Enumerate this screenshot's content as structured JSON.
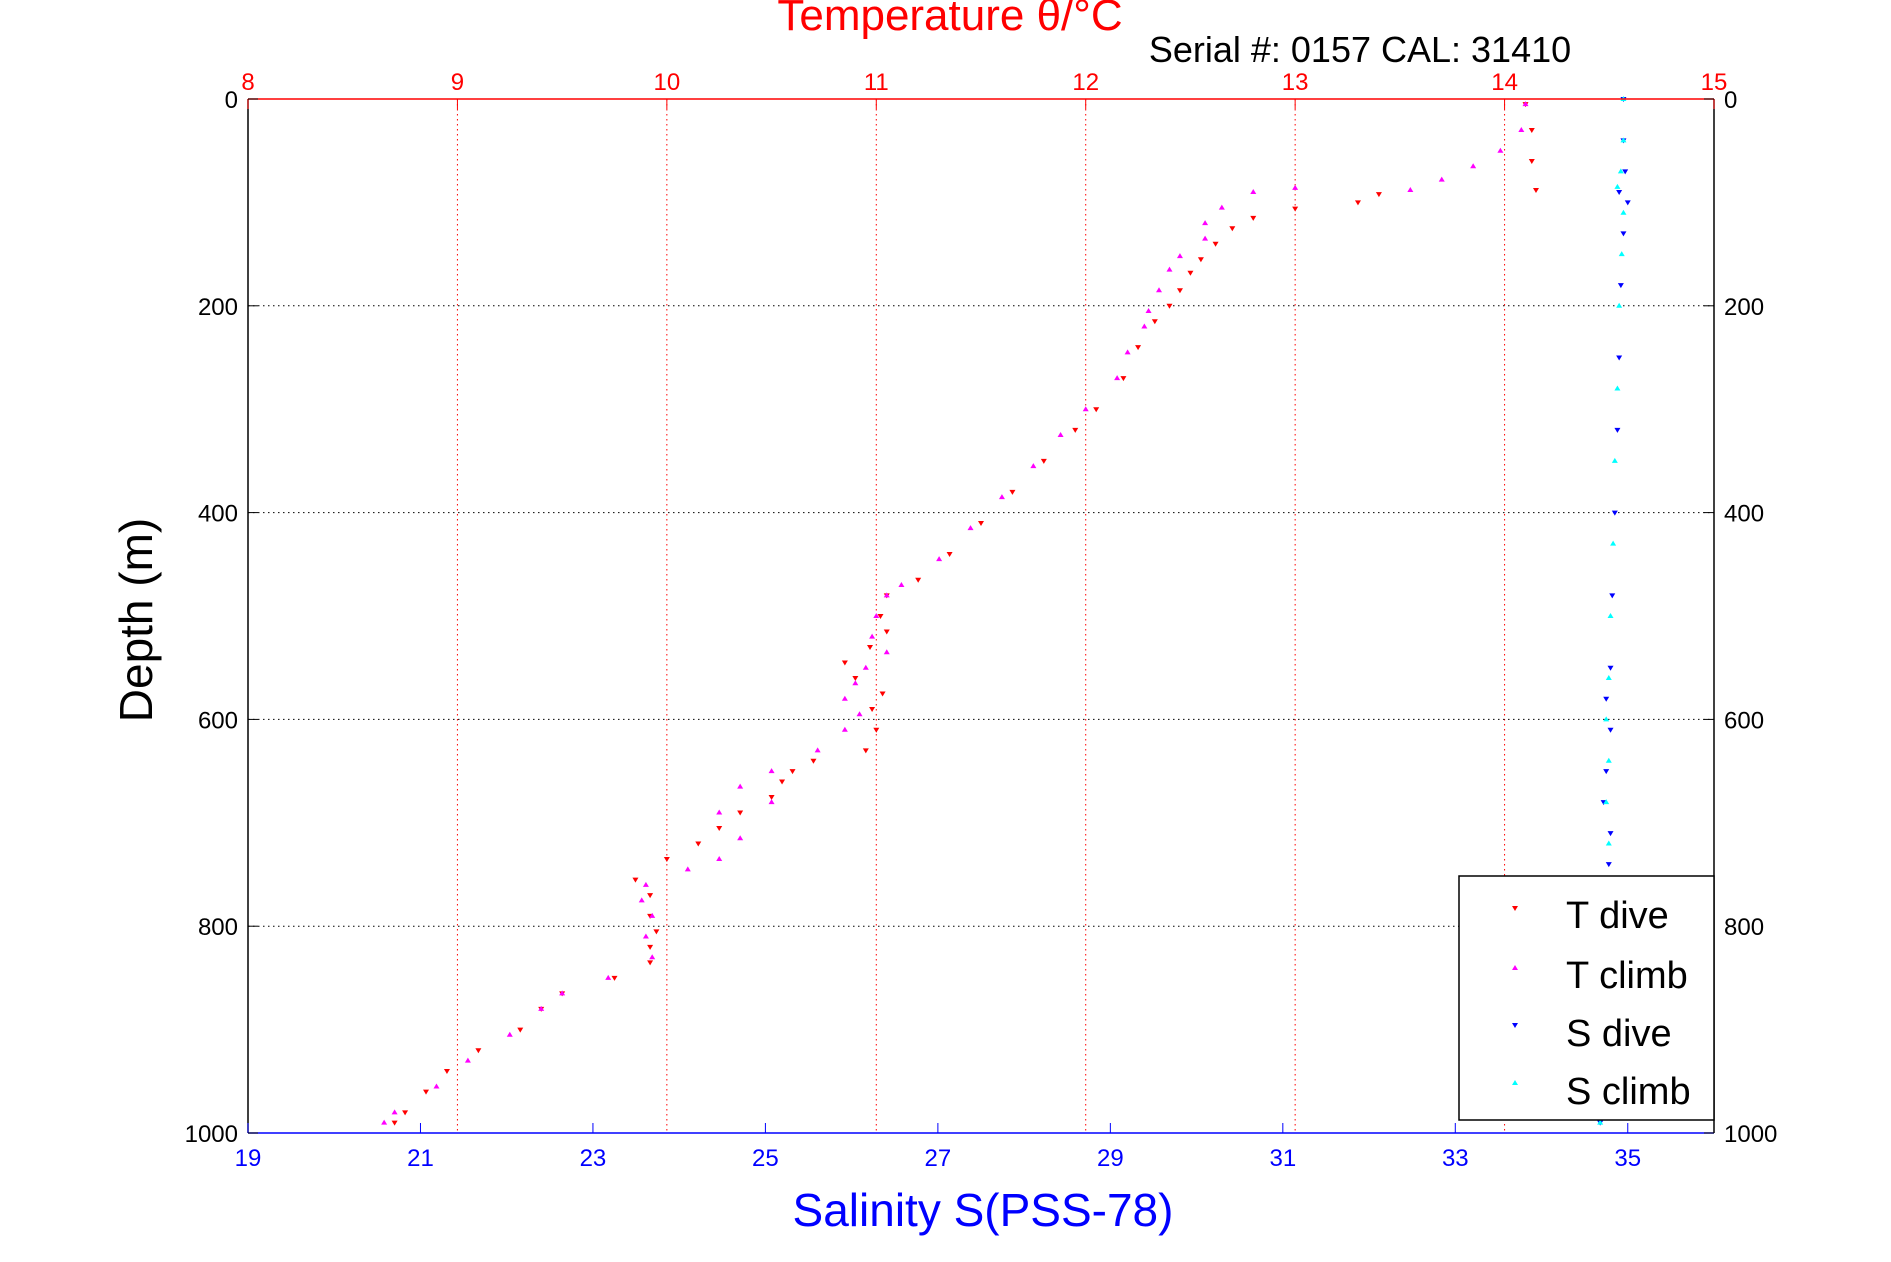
{
  "chart_data": {
    "type": "scatter",
    "title": "Temperature θ/°C",
    "subtitle": "Serial #: 0157  CAL: 31410",
    "ylabel": "Depth (m)",
    "xlabel": "Salinity S(PSS-78)",
    "y_axis": {
      "range": [
        0,
        1000
      ],
      "reversed": true,
      "ticks": [
        0,
        200,
        400,
        600,
        800,
        1000
      ]
    },
    "x_axis_temperature": {
      "range": [
        8,
        15
      ],
      "position": "top",
      "ticks": [
        8,
        9,
        10,
        11,
        12,
        13,
        14,
        15
      ]
    },
    "x_axis_salinity": {
      "range": [
        19,
        36
      ],
      "position": "bottom",
      "ticks": [
        19,
        21,
        23,
        25,
        27,
        29,
        31,
        33,
        35
      ]
    },
    "grid": true,
    "legend_position": "bottom-right",
    "colors": {
      "temperature_axis": "#ff0000",
      "salinity_axis": "#0000ff",
      "frame": "#000000"
    },
    "series": [
      {
        "name": "T dive",
        "axis": "temperature",
        "color": "#ff0000",
        "marker": "triangle-down",
        "points": [
          [
            14.1,
            5
          ],
          [
            14.13,
            30
          ],
          [
            14.13,
            60
          ],
          [
            14.15,
            88
          ],
          [
            13.4,
            92
          ],
          [
            13.3,
            100
          ],
          [
            13.0,
            106
          ],
          [
            12.8,
            115
          ],
          [
            12.7,
            125
          ],
          [
            12.62,
            140
          ],
          [
            12.55,
            155
          ],
          [
            12.5,
            168
          ],
          [
            12.45,
            185
          ],
          [
            12.4,
            200
          ],
          [
            12.33,
            215
          ],
          [
            12.25,
            240
          ],
          [
            12.18,
            270
          ],
          [
            12.05,
            300
          ],
          [
            11.95,
            320
          ],
          [
            11.8,
            350
          ],
          [
            11.65,
            380
          ],
          [
            11.5,
            410
          ],
          [
            11.35,
            440
          ],
          [
            11.2,
            465
          ],
          [
            11.05,
            480
          ],
          [
            11.02,
            500
          ],
          [
            11.05,
            515
          ],
          [
            10.97,
            530
          ],
          [
            10.85,
            545
          ],
          [
            10.9,
            560
          ],
          [
            11.03,
            575
          ],
          [
            10.98,
            590
          ],
          [
            11.0,
            610
          ],
          [
            10.95,
            630
          ],
          [
            10.7,
            640
          ],
          [
            10.6,
            650
          ],
          [
            10.55,
            660
          ],
          [
            10.5,
            675
          ],
          [
            10.35,
            690
          ],
          [
            10.25,
            705
          ],
          [
            10.15,
            720
          ],
          [
            10.0,
            735
          ],
          [
            9.85,
            755
          ],
          [
            9.92,
            770
          ],
          [
            9.92,
            790
          ],
          [
            9.95,
            805
          ],
          [
            9.92,
            820
          ],
          [
            9.92,
            835
          ],
          [
            9.75,
            850
          ],
          [
            9.5,
            865
          ],
          [
            9.4,
            880
          ],
          [
            9.3,
            900
          ],
          [
            9.1,
            920
          ],
          [
            8.95,
            940
          ],
          [
            8.85,
            960
          ],
          [
            8.75,
            980
          ],
          [
            8.7,
            990
          ]
        ]
      },
      {
        "name": "T climb",
        "axis": "temperature",
        "color": "#ff00ff",
        "marker": "triangle-up",
        "points": [
          [
            14.1,
            5
          ],
          [
            14.08,
            30
          ],
          [
            13.98,
            50
          ],
          [
            13.85,
            65
          ],
          [
            13.7,
            78
          ],
          [
            13.55,
            88
          ],
          [
            13.0,
            86
          ],
          [
            12.8,
            90
          ],
          [
            12.65,
            105
          ],
          [
            12.57,
            120
          ],
          [
            12.57,
            135
          ],
          [
            12.45,
            152
          ],
          [
            12.4,
            165
          ],
          [
            12.35,
            185
          ],
          [
            12.3,
            205
          ],
          [
            12.28,
            220
          ],
          [
            12.2,
            245
          ],
          [
            12.15,
            270
          ],
          [
            12.0,
            300
          ],
          [
            11.88,
            325
          ],
          [
            11.75,
            355
          ],
          [
            11.6,
            385
          ],
          [
            11.45,
            415
          ],
          [
            11.3,
            445
          ],
          [
            11.12,
            470
          ],
          [
            11.05,
            480
          ],
          [
            11.0,
            500
          ],
          [
            10.98,
            520
          ],
          [
            11.05,
            535
          ],
          [
            10.95,
            550
          ],
          [
            10.9,
            565
          ],
          [
            10.85,
            580
          ],
          [
            10.92,
            595
          ],
          [
            10.85,
            610
          ],
          [
            10.72,
            630
          ],
          [
            10.5,
            650
          ],
          [
            10.35,
            665
          ],
          [
            10.5,
            680
          ],
          [
            10.25,
            690
          ],
          [
            10.35,
            715
          ],
          [
            10.25,
            735
          ],
          [
            10.1,
            745
          ],
          [
            9.9,
            760
          ],
          [
            9.88,
            775
          ],
          [
            9.93,
            790
          ],
          [
            9.9,
            810
          ],
          [
            9.93,
            830
          ],
          [
            9.72,
            850
          ],
          [
            9.5,
            865
          ],
          [
            9.4,
            880
          ],
          [
            9.25,
            905
          ],
          [
            9.05,
            930
          ],
          [
            8.9,
            955
          ],
          [
            8.7,
            980
          ],
          [
            8.65,
            990
          ]
        ]
      },
      {
        "name": "S dive",
        "axis": "salinity",
        "color": "#0000ff",
        "marker": "triangle-down",
        "points": [
          [
            34.95,
            0
          ],
          [
            34.95,
            40
          ],
          [
            34.97,
            70
          ],
          [
            34.9,
            90
          ],
          [
            35.0,
            100
          ],
          [
            34.95,
            130
          ],
          [
            34.92,
            180
          ],
          [
            34.9,
            250
          ],
          [
            34.88,
            320
          ],
          [
            34.85,
            400
          ],
          [
            34.82,
            480
          ],
          [
            34.8,
            550
          ],
          [
            34.75,
            580
          ],
          [
            34.8,
            610
          ],
          [
            34.75,
            650
          ],
          [
            34.72,
            680
          ],
          [
            34.8,
            710
          ],
          [
            34.78,
            740
          ],
          [
            34.72,
            770
          ],
          [
            34.7,
            850
          ],
          [
            34.7,
            920
          ],
          [
            34.68,
            990
          ]
        ]
      },
      {
        "name": "S climb",
        "axis": "salinity",
        "color": "#00ffff",
        "marker": "triangle-up",
        "points": [
          [
            34.95,
            0
          ],
          [
            34.95,
            40
          ],
          [
            34.92,
            70
          ],
          [
            34.88,
            85
          ],
          [
            34.95,
            110
          ],
          [
            34.93,
            150
          ],
          [
            34.9,
            200
          ],
          [
            34.88,
            280
          ],
          [
            34.85,
            350
          ],
          [
            34.83,
            430
          ],
          [
            34.8,
            500
          ],
          [
            34.78,
            560
          ],
          [
            34.75,
            600
          ],
          [
            34.78,
            640
          ],
          [
            34.75,
            680
          ],
          [
            34.78,
            720
          ],
          [
            34.75,
            760
          ],
          [
            34.72,
            840
          ],
          [
            34.7,
            920
          ],
          [
            34.68,
            990
          ]
        ]
      }
    ]
  }
}
